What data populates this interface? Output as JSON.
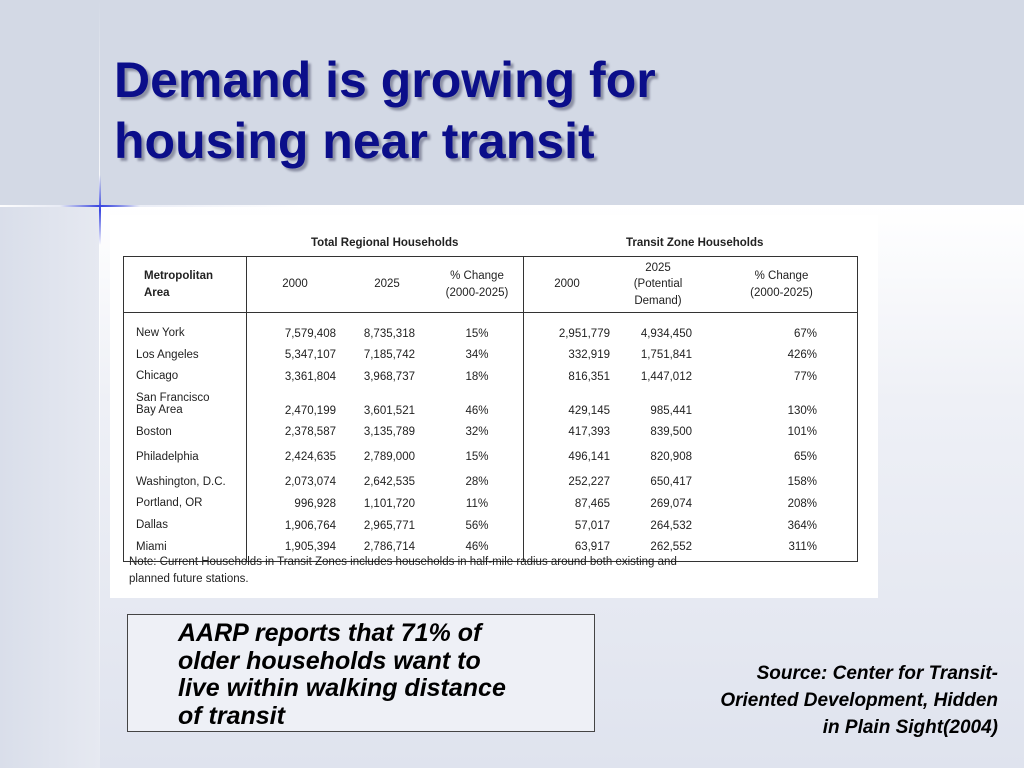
{
  "slide": {
    "title_line1": "Demand is growing for",
    "title_line2": "housing near transit",
    "aarp_lines": [
      "AARP reports that 71% of",
      "older households want to",
      "live within walking distance",
      "of transit"
    ],
    "source_lines": [
      "Source:  Center for Transit-",
      "Oriented Development, Hidden",
      "in Plain Sight(2004)"
    ],
    "colors": {
      "title": "#0b0e8a",
      "accent_star": "#3a46e0"
    }
  },
  "table": {
    "group_headers": {
      "regional": "Total Regional Households",
      "transit": "Transit Zone Households"
    },
    "columns": {
      "metro_line1": "Metropolitan",
      "metro_line2": "Area",
      "reg_2000": "2000",
      "reg_2025": "2025",
      "reg_change_line1": "% Change",
      "reg_change_line2": "(2000-2025)",
      "tz_2000": "2000",
      "tz_2025_line1": "2025",
      "tz_2025_line2": "(Potential",
      "tz_2025_line3": "Demand)",
      "tz_change_line1": "% Change",
      "tz_change_line2": "(2000-2025)"
    },
    "rows": [
      {
        "area": "New York",
        "r2000": "7,579,408",
        "r2025": "8,735,318",
        "rchg": "15%",
        "t2000": "2,951,779",
        "t2025": "4,934,450",
        "tchg": "67%"
      },
      {
        "area": "Los Angeles",
        "r2000": "5,347,107",
        "r2025": "7,185,742",
        "rchg": "34%",
        "t2000": "332,919",
        "t2025": "1,751,841",
        "tchg": "426%"
      },
      {
        "area": "Chicago",
        "r2000": "3,361,804",
        "r2025": "3,968,737",
        "rchg": "18%",
        "t2000": "816,351",
        "t2025": "1,447,012",
        "tchg": "77%"
      },
      {
        "area_line1": "San Francisco",
        "area": "Bay Area",
        "r2000": "2,470,199",
        "r2025": "3,601,521",
        "rchg": "46%",
        "t2000": "429,145",
        "t2025": "985,441",
        "tchg": "130%"
      },
      {
        "area": "Boston",
        "r2000": "2,378,587",
        "r2025": "3,135,789",
        "rchg": "32%",
        "t2000": "417,393",
        "t2025": "839,500",
        "tchg": "101%"
      },
      {
        "area": "Philadelphia",
        "r2000": "2,424,635",
        "r2025": "2,789,000",
        "rchg": "15%",
        "t2000": "496,141",
        "t2025": "820,908",
        "tchg": "65%"
      },
      {
        "area": "Washington, D.C.",
        "r2000": "2,073,074",
        "r2025": "2,642,535",
        "rchg": "28%",
        "t2000": "252,227",
        "t2025": "650,417",
        "tchg": "158%"
      },
      {
        "area": "Portland, OR",
        "r2000": "996,928",
        "r2025": "1,101,720",
        "rchg": "11%",
        "t2000": "87,465",
        "t2025": "269,074",
        "tchg": "208%"
      },
      {
        "area": "Dallas",
        "r2000": "1,906,764",
        "r2025": "2,965,771",
        "rchg": "56%",
        "t2000": "57,017",
        "t2025": "264,532",
        "tchg": "364%"
      },
      {
        "area": "Miami",
        "r2000": "1,905,394",
        "r2025": "2,786,714",
        "rchg": "46%",
        "t2000": "63,917",
        "t2025": "262,552",
        "tchg": "311%"
      }
    ],
    "note_line1": "Note: Current Households in Transit Zones includes households in half-mile radius around both existing and",
    "note_line2": "planned future stations."
  }
}
